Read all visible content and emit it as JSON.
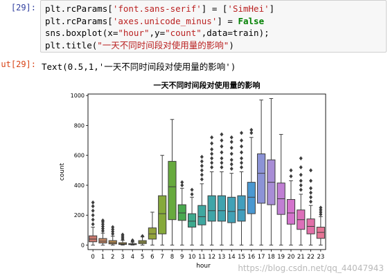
{
  "cell_in": {
    "prompt": "[29]:",
    "code": {
      "line1_pre": "plt.rcParams[",
      "line1_str1": "'font.sans-serif'",
      "line1_mid": "] = [",
      "line1_str2": "'SimHei'",
      "line1_end": "]",
      "line2_pre": "plt.rcParams[",
      "line2_str": "'axes.unicode_minus'",
      "line2_mid": "] = ",
      "line2_kw": "False",
      "line3_pre": "sns.boxplot(x=",
      "line3_str1": "\"hour\"",
      "line3_mid1": ",y=",
      "line3_str2": "\"count\"",
      "line3_end": ",data=train);",
      "line4_pre": "plt.title(",
      "line4_str": "\"一天不同时间段对使用量的影响\"",
      "line4_end": ")"
    }
  },
  "cell_out": {
    "prompt": "ut[29]:",
    "text": "Text(0.5,1,'一天不同时间段对使用量的影响')"
  },
  "watermark": "https://blog.csdn.net/qq_44047943",
  "chart_data": {
    "type": "boxplot",
    "title": "一天不同时间段对使用量的影响",
    "xlabel": "hour",
    "ylabel": "count",
    "ylim": [
      -30,
      1010
    ],
    "yticks": [
      0,
      200,
      400,
      600,
      800,
      1000
    ],
    "categories": [
      "0",
      "1",
      "2",
      "3",
      "4",
      "5",
      "6",
      "7",
      "8",
      "9",
      "10",
      "11",
      "12",
      "13",
      "14",
      "15",
      "16",
      "17",
      "18",
      "19",
      "20",
      "21",
      "22",
      "23"
    ],
    "boxes": [
      {
        "q1": 22,
        "median": 40,
        "q3": 62,
        "low": 0,
        "high": 120,
        "fliers": [
          140,
          170,
          200,
          230,
          260,
          285
        ],
        "color": "#c9796f"
      },
      {
        "q1": 14,
        "median": 26,
        "q3": 44,
        "low": 0,
        "high": 80,
        "fliers": [
          95,
          110,
          125,
          140,
          155,
          165
        ],
        "color": "#c48866"
      },
      {
        "q1": 8,
        "median": 16,
        "q3": 30,
        "low": 0,
        "high": 60,
        "fliers": [
          75,
          90,
          105,
          120
        ],
        "color": "#b98a4c"
      },
      {
        "q1": 4,
        "median": 8,
        "q3": 16,
        "low": 0,
        "high": 32,
        "fliers": [
          40,
          50,
          60,
          70
        ],
        "color": "#ae9244"
      },
      {
        "q1": 3,
        "median": 6,
        "q3": 10,
        "low": 0,
        "high": 20,
        "fliers": [
          25,
          28,
          32
        ],
        "color": "#a59a45"
      },
      {
        "q1": 10,
        "median": 20,
        "q3": 30,
        "low": 0,
        "high": 55,
        "fliers": [
          60
        ],
        "color": "#9ea042"
      },
      {
        "q1": 40,
        "median": 75,
        "q3": 115,
        "low": 0,
        "high": 220,
        "fliers": [],
        "color": "#93a33d"
      },
      {
        "q1": 75,
        "median": 210,
        "q3": 330,
        "low": 0,
        "high": 600,
        "fliers": [],
        "color": "#86a93b"
      },
      {
        "q1": 170,
        "median": 390,
        "q3": 560,
        "low": 0,
        "high": 840,
        "fliers": [],
        "color": "#67aa3e"
      },
      {
        "q1": 165,
        "median": 215,
        "q3": 270,
        "low": 0,
        "high": 380,
        "fliers": [
          400,
          420
        ],
        "color": "#49a84e"
      },
      {
        "q1": 120,
        "median": 160,
        "q3": 210,
        "low": 0,
        "high": 320,
        "fliers": [
          340,
          370
        ],
        "color": "#3ea98e"
      },
      {
        "q1": 135,
        "median": 190,
        "q3": 265,
        "low": 0,
        "high": 410,
        "fliers": [
          440,
          470,
          500,
          530,
          560,
          590
        ],
        "color": "#3fa7a0"
      },
      {
        "q1": 160,
        "median": 230,
        "q3": 330,
        "low": 0,
        "high": 490,
        "fliers": [
          520,
          550,
          580,
          610,
          640,
          680,
          720
        ],
        "color": "#3fa5a8"
      },
      {
        "q1": 160,
        "median": 230,
        "q3": 330,
        "low": 0,
        "high": 490,
        "fliers": [
          520,
          550,
          580,
          620,
          660,
          700,
          740
        ],
        "color": "#40a3af"
      },
      {
        "q1": 150,
        "median": 225,
        "q3": 320,
        "low": 0,
        "high": 480,
        "fliers": [
          510,
          540,
          570,
          610,
          650,
          690,
          720
        ],
        "color": "#41a1b6"
      },
      {
        "q1": 160,
        "median": 235,
        "q3": 330,
        "low": 0,
        "high": 490,
        "fliers": [
          520,
          550,
          580,
          620,
          660,
          700,
          750
        ],
        "color": "#429ebd"
      },
      {
        "q1": 210,
        "median": 320,
        "q3": 420,
        "low": 0,
        "high": 720,
        "fliers": [
          750,
          770
        ],
        "color": "#4a98d1"
      },
      {
        "q1": 280,
        "median": 480,
        "q3": 610,
        "low": 0,
        "high": 970,
        "fliers": [],
        "color": "#8c93d6"
      },
      {
        "q1": 270,
        "median": 420,
        "q3": 570,
        "low": 0,
        "high": 980,
        "fliers": [],
        "color": "#a88dd6"
      },
      {
        "q1": 205,
        "median": 310,
        "q3": 415,
        "low": 0,
        "high": 740,
        "fliers": [],
        "color": "#c07fd4"
      },
      {
        "q1": 140,
        "median": 215,
        "q3": 305,
        "low": 0,
        "high": 430,
        "fliers": [
          460,
          500
        ],
        "color": "#d373cc"
      },
      {
        "q1": 105,
        "median": 170,
        "q3": 235,
        "low": 0,
        "high": 340,
        "fliers": [
          370,
          400,
          430,
          470,
          520,
          580
        ],
        "color": "#dc6fb9"
      },
      {
        "q1": 75,
        "median": 125,
        "q3": 175,
        "low": 0,
        "high": 265,
        "fliers": [
          290,
          320,
          350,
          380,
          430,
          500
        ],
        "color": "#e270a8"
      },
      {
        "q1": 45,
        "median": 85,
        "q3": 120,
        "low": 0,
        "high": 190,
        "fliers": [
          205,
          220,
          235,
          250
        ],
        "color": "#e57595"
      }
    ]
  }
}
